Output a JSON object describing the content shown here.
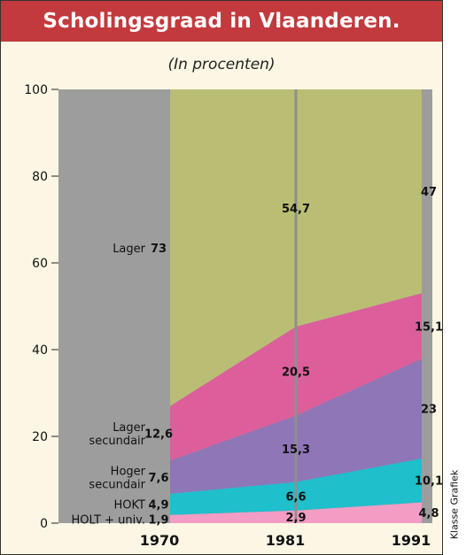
{
  "title": "Scholingsgraad in Vlaanderen.",
  "subtitle": "(In procenten)",
  "credit": "Klasse Grafiek",
  "chart_data": {
    "type": "area",
    "stacked": true,
    "x": [
      "1970",
      "1981",
      "1991"
    ],
    "ylim": [
      0,
      100
    ],
    "yticks": [
      0,
      20,
      40,
      60,
      80,
      100
    ],
    "series": [
      {
        "name": "HOLT + univ.",
        "values": [
          1.9,
          2.9,
          4.8
        ],
        "labels": [
          "1,9",
          "2,9",
          "4,8"
        ],
        "color": "#f39cc4"
      },
      {
        "name": "HOKT",
        "values": [
          4.9,
          6.6,
          10.1
        ],
        "labels": [
          "4,9",
          "6,6",
          "10,1"
        ],
        "color": "#1fbfcc"
      },
      {
        "name": "Hoger secundair",
        "values": [
          7.6,
          15.3,
          23
        ],
        "labels": [
          "7,6",
          "15,3",
          "23"
        ],
        "color": "#8e76b7"
      },
      {
        "name": "Lager secundair",
        "values": [
          12.6,
          20.5,
          15.1
        ],
        "labels": [
          "12,6",
          "20,5",
          "15,1"
        ],
        "color": "#dc5f9c"
      },
      {
        "name": "Lager",
        "values": [
          73,
          54.7,
          47
        ],
        "labels": [
          "73",
          "54,7",
          "47"
        ],
        "color": "#b9be74"
      }
    ],
    "background_color": "#9d9d9d"
  }
}
